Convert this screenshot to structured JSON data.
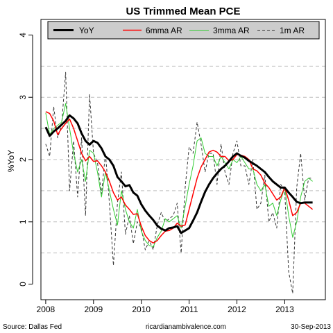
{
  "chart_data": {
    "type": "line",
    "title": "US Trimmed Mean PCE",
    "ylabel": "%YoY",
    "xlabel": "",
    "ylim": [
      -0.25,
      4.25
    ],
    "xlim": [
      2007.9,
      2013.85
    ],
    "yticks": [
      0,
      1,
      2,
      3,
      4
    ],
    "xticks": [
      2008,
      2009,
      2010,
      2011,
      2012,
      2013
    ],
    "ytick_labels": [
      "0",
      "1",
      "2",
      "3",
      "4"
    ],
    "xtick_labels": [
      "2008",
      "2009",
      "2010",
      "2011",
      "2012",
      "2013"
    ],
    "gridlines_y": [
      0.5,
      1.0,
      1.5,
      2.0,
      2.5,
      3.0,
      3.5
    ],
    "grid": true,
    "legend_position": "top",
    "series": [
      {
        "name": "YoY",
        "color": "#000000",
        "style": "solid",
        "width": 3,
        "x": [
          2008.0,
          2008.083,
          2008.167,
          2008.25,
          2008.333,
          2008.417,
          2008.5,
          2008.583,
          2008.667,
          2008.75,
          2008.833,
          2008.917,
          2009.0,
          2009.083,
          2009.167,
          2009.25,
          2009.333,
          2009.417,
          2009.5,
          2009.583,
          2009.667,
          2009.75,
          2009.833,
          2009.917,
          2010.0,
          2010.083,
          2010.167,
          2010.25,
          2010.333,
          2010.417,
          2010.5,
          2010.583,
          2010.667,
          2010.75,
          2010.833,
          2010.917,
          2011.0,
          2011.083,
          2011.167,
          2011.25,
          2011.333,
          2011.417,
          2011.5,
          2011.583,
          2011.667,
          2011.75,
          2011.833,
          2011.917,
          2012.0,
          2012.083,
          2012.167,
          2012.25,
          2012.333,
          2012.417,
          2012.5,
          2012.583,
          2012.667,
          2012.75,
          2012.833,
          2012.917,
          2013.0,
          2013.083,
          2013.167,
          2013.25,
          2013.333,
          2013.417,
          2013.5,
          2013.583
        ],
        "values": [
          2.52,
          2.38,
          2.45,
          2.5,
          2.56,
          2.62,
          2.71,
          2.66,
          2.58,
          2.42,
          2.3,
          2.24,
          2.3,
          2.27,
          2.18,
          2.05,
          2.0,
          1.9,
          1.72,
          1.65,
          1.57,
          1.59,
          1.47,
          1.42,
          1.28,
          1.18,
          1.1,
          1.03,
          0.94,
          0.89,
          0.86,
          0.9,
          0.91,
          0.93,
          0.82,
          0.86,
          0.9,
          1.02,
          1.15,
          1.32,
          1.48,
          1.6,
          1.7,
          1.78,
          1.85,
          1.9,
          1.97,
          2.05,
          2.1,
          2.06,
          2.03,
          1.98,
          1.94,
          1.9,
          1.85,
          1.8,
          1.72,
          1.65,
          1.6,
          1.55,
          1.55,
          1.47,
          1.4,
          1.32,
          1.3,
          1.31,
          1.31,
          1.31
        ]
      },
      {
        "name": "6mma AR",
        "color": "#ff0000",
        "style": "solid",
        "width": 1.5,
        "x": [
          2008.0,
          2008.083,
          2008.167,
          2008.25,
          2008.333,
          2008.417,
          2008.5,
          2008.583,
          2008.667,
          2008.75,
          2008.833,
          2008.917,
          2009.0,
          2009.083,
          2009.167,
          2009.25,
          2009.333,
          2009.417,
          2009.5,
          2009.583,
          2009.667,
          2009.75,
          2009.833,
          2009.917,
          2010.0,
          2010.083,
          2010.167,
          2010.25,
          2010.333,
          2010.417,
          2010.5,
          2010.583,
          2010.667,
          2010.75,
          2010.833,
          2010.917,
          2011.0,
          2011.083,
          2011.167,
          2011.25,
          2011.333,
          2011.417,
          2011.5,
          2011.583,
          2011.667,
          2011.75,
          2011.833,
          2011.917,
          2012.0,
          2012.083,
          2012.167,
          2012.25,
          2012.333,
          2012.417,
          2012.5,
          2012.583,
          2012.667,
          2012.75,
          2012.833,
          2012.917,
          2013.0,
          2013.083,
          2013.167,
          2013.25,
          2013.333,
          2013.417,
          2013.5,
          2013.583
        ],
        "values": [
          2.77,
          2.74,
          2.62,
          2.4,
          2.5,
          2.58,
          2.65,
          2.5,
          2.3,
          2.1,
          1.98,
          2.05,
          1.97,
          1.98,
          1.9,
          1.8,
          1.65,
          1.47,
          1.35,
          1.4,
          1.27,
          1.2,
          1.12,
          1.13,
          0.93,
          0.78,
          0.7,
          0.66,
          0.7,
          0.78,
          0.85,
          0.86,
          0.9,
          0.98,
          0.93,
          0.95,
          1.2,
          1.45,
          1.7,
          1.88,
          2.0,
          2.12,
          2.15,
          2.12,
          2.05,
          2.05,
          1.98,
          2.0,
          2.08,
          2.07,
          2.05,
          2.0,
          1.85,
          1.82,
          1.75,
          1.62,
          1.55,
          1.45,
          1.35,
          1.4,
          1.55,
          1.35,
          1.1,
          1.15,
          1.3,
          1.3,
          1.25,
          1.2
        ]
      },
      {
        "name": "3mma AR",
        "color": "#33cc33",
        "style": "solid",
        "width": 1,
        "x": [
          2008.0,
          2008.083,
          2008.167,
          2008.25,
          2008.333,
          2008.417,
          2008.5,
          2008.583,
          2008.667,
          2008.75,
          2008.833,
          2008.917,
          2009.0,
          2009.083,
          2009.167,
          2009.25,
          2009.333,
          2009.417,
          2009.5,
          2009.583,
          2009.667,
          2009.75,
          2009.833,
          2009.917,
          2010.0,
          2010.083,
          2010.167,
          2010.25,
          2010.333,
          2010.417,
          2010.5,
          2010.583,
          2010.667,
          2010.75,
          2010.833,
          2010.917,
          2011.0,
          2011.083,
          2011.167,
          2011.25,
          2011.333,
          2011.417,
          2011.5,
          2011.583,
          2011.667,
          2011.75,
          2011.833,
          2011.917,
          2012.0,
          2012.083,
          2012.167,
          2012.25,
          2012.333,
          2012.417,
          2012.5,
          2012.583,
          2012.667,
          2012.75,
          2012.833,
          2012.917,
          2013.0,
          2013.083,
          2013.167,
          2013.25,
          2013.333,
          2013.417,
          2013.5,
          2013.583
        ],
        "values": [
          2.75,
          2.4,
          2.5,
          2.55,
          2.6,
          2.9,
          2.5,
          2.1,
          1.8,
          2.0,
          1.65,
          2.15,
          2.1,
          1.8,
          1.4,
          1.8,
          1.5,
          1.2,
          0.95,
          1.5,
          1.2,
          1.0,
          0.9,
          1.2,
          0.85,
          0.7,
          0.62,
          0.6,
          0.75,
          0.85,
          1.05,
          1.0,
          1.05,
          1.1,
          0.9,
          1.25,
          1.6,
          1.9,
          2.3,
          2.35,
          2.1,
          2.05,
          2.05,
          1.9,
          2.05,
          1.95,
          1.85,
          2.0,
          1.95,
          2.05,
          1.95,
          1.85,
          1.85,
          1.6,
          1.5,
          1.6,
          1.25,
          1.3,
          1.1,
          1.35,
          1.55,
          1.1,
          0.75,
          1.0,
          1.4,
          1.65,
          1.7,
          1.65
        ]
      },
      {
        "name": "1m AR",
        "color": "#333333",
        "style": "dashed",
        "width": 1,
        "x": [
          2008.0,
          2008.083,
          2008.167,
          2008.25,
          2008.333,
          2008.417,
          2008.5,
          2008.583,
          2008.667,
          2008.75,
          2008.833,
          2008.917,
          2009.0,
          2009.083,
          2009.167,
          2009.25,
          2009.333,
          2009.417,
          2009.5,
          2009.583,
          2009.667,
          2009.75,
          2009.833,
          2009.917,
          2010.0,
          2010.083,
          2010.167,
          2010.25,
          2010.333,
          2010.417,
          2010.5,
          2010.583,
          2010.667,
          2010.75,
          2010.833,
          2010.917,
          2011.0,
          2011.083,
          2011.167,
          2011.25,
          2011.333,
          2011.417,
          2011.5,
          2011.583,
          2011.667,
          2011.75,
          2011.833,
          2011.917,
          2012.0,
          2012.083,
          2012.167,
          2012.25,
          2012.333,
          2012.417,
          2012.5,
          2012.583,
          2012.667,
          2012.75,
          2012.833,
          2012.917,
          2013.0,
          2013.083,
          2013.167,
          2013.25,
          2013.333,
          2013.417,
          2013.5,
          2013.583
        ],
        "values": [
          2.25,
          2.05,
          2.85,
          2.35,
          2.55,
          3.4,
          1.5,
          2.3,
          1.4,
          2.35,
          1.1,
          3.05,
          2.1,
          1.95,
          1.45,
          2.1,
          1.3,
          0.3,
          1.3,
          1.8,
          0.8,
          1.1,
          0.65,
          1.0,
          0.9,
          0.55,
          0.7,
          0.55,
          0.95,
          1.15,
          1.0,
          1.05,
          1.1,
          1.3,
          0.5,
          1.55,
          2.2,
          2.1,
          2.6,
          2.25,
          1.8,
          2.1,
          2.1,
          1.6,
          2.25,
          1.8,
          1.6,
          2.1,
          2.3,
          1.9,
          1.9,
          1.6,
          2.0,
          1.2,
          1.3,
          1.75,
          1.0,
          1.15,
          0.9,
          1.6,
          1.5,
          0.2,
          -0.15,
          1.55,
          2.1,
          1.35,
          1.7,
          1.7
        ]
      }
    ]
  },
  "footer": {
    "source": "Source: Dallas Fed",
    "credit": "ricardianambivalence.com",
    "date": "30-Sep-2013"
  }
}
